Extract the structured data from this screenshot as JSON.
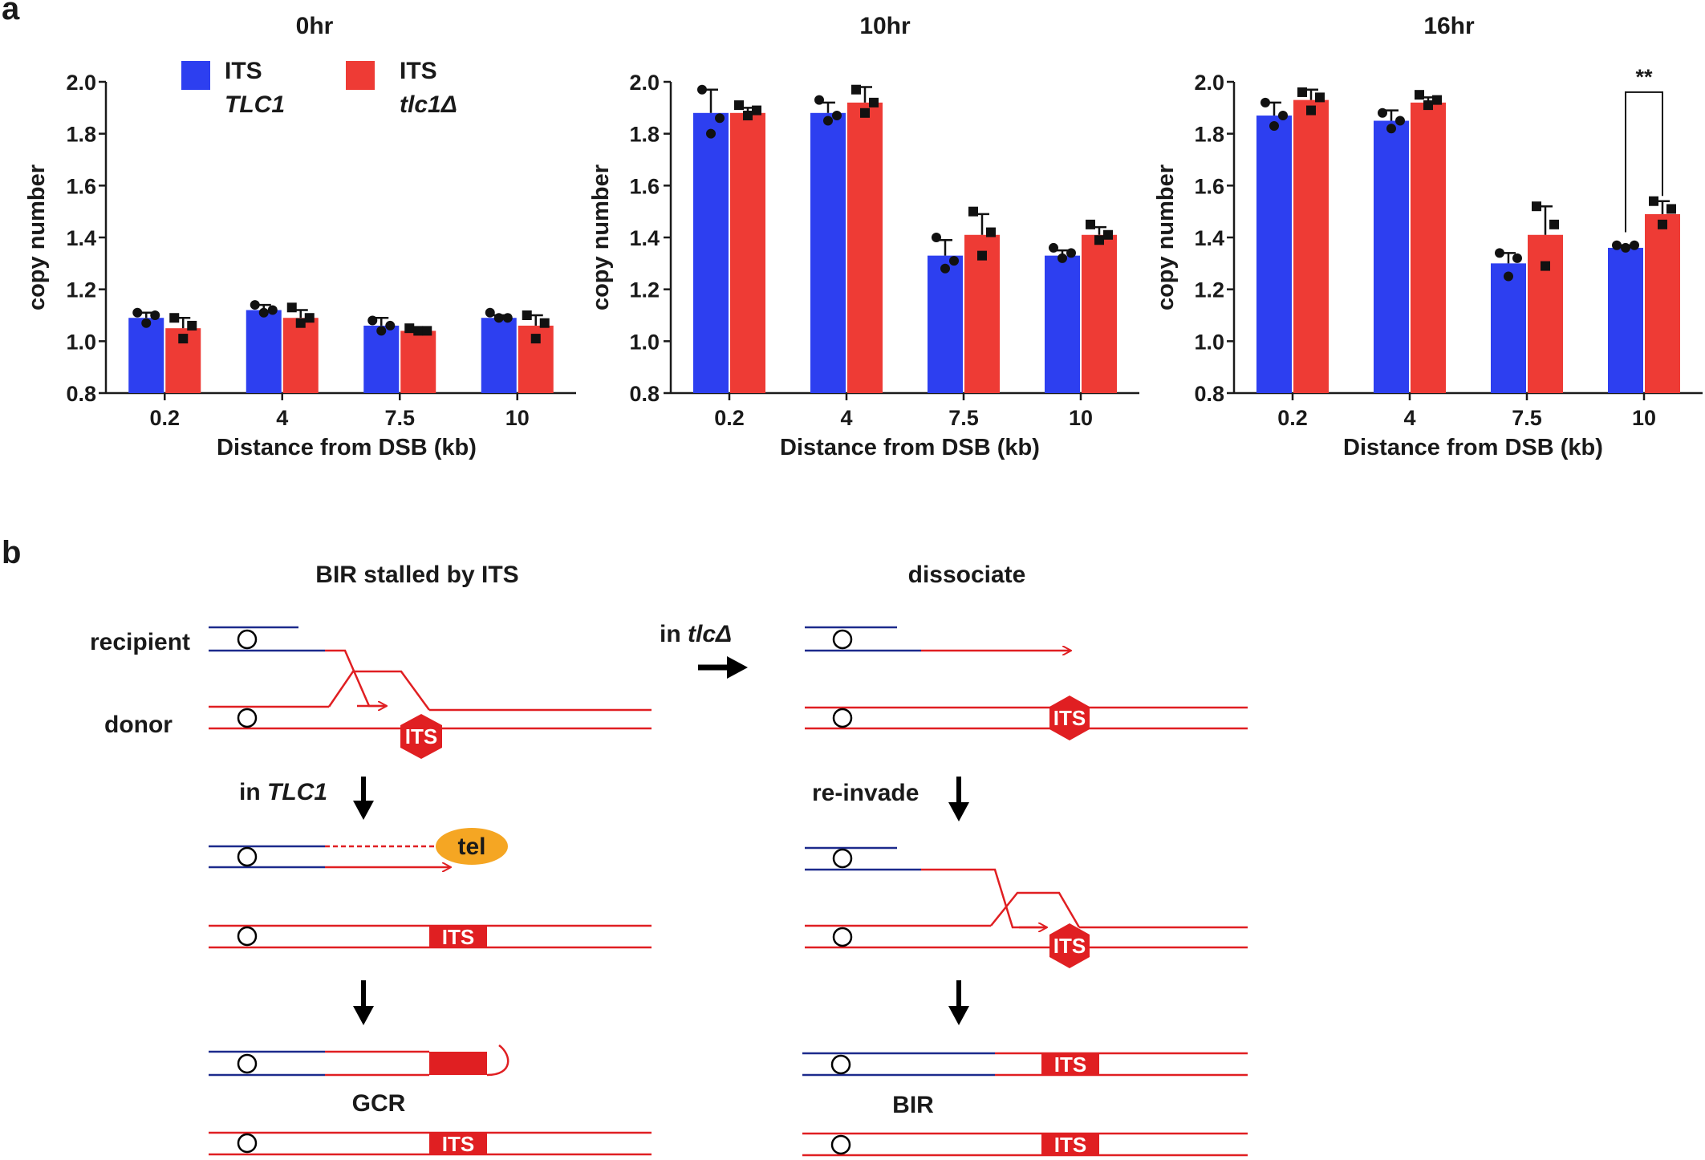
{
  "panel_a_label": "a",
  "panel_b_label": "b",
  "legend": {
    "wt_line1": "ITS",
    "wt_line2": "TLC1",
    "mut_line1": "ITS",
    "mut_line2": "tlc1Δ"
  },
  "colors": {
    "wt": "#2d3ff0",
    "mut": "#ee3b35",
    "recipient": "#1c2a8c",
    "donor": "#e01f22",
    "tel": "#f5a623"
  },
  "chart_data": [
    {
      "type": "bar",
      "title": "0hr",
      "xlabel": "Distance from DSB (kb)",
      "ylabel": "copy number",
      "ylim": [
        0.8,
        2.0
      ],
      "yticks": [
        "0.8",
        "1.0",
        "1.2",
        "1.4",
        "1.6",
        "1.8",
        "2.0"
      ],
      "categories": [
        "0.2",
        "4",
        "7.5",
        "10"
      ],
      "series": [
        {
          "name": "ITS TLC1",
          "values": [
            1.09,
            1.12,
            1.06,
            1.09
          ],
          "errors": [
            0.02,
            0.02,
            0.03,
            0.01
          ],
          "points": [
            [
              1.11,
              1.07,
              1.1
            ],
            [
              1.14,
              1.11,
              1.12
            ],
            [
              1.08,
              1.04,
              1.06
            ],
            [
              1.11,
              1.09,
              1.09
            ]
          ]
        },
        {
          "name": "ITS tlc1Δ",
          "values": [
            1.05,
            1.09,
            1.04,
            1.06
          ],
          "errors": [
            0.04,
            0.03,
            0.01,
            0.04
          ],
          "points": [
            [
              1.09,
              1.01,
              1.06
            ],
            [
              1.13,
              1.07,
              1.09
            ],
            [
              1.05,
              1.04,
              1.04
            ],
            [
              1.1,
              1.01,
              1.07
            ]
          ]
        }
      ],
      "annotation": ""
    },
    {
      "type": "bar",
      "title": "10hr",
      "xlabel": "Distance from DSB (kb)",
      "ylabel": "copy number",
      "ylim": [
        0.8,
        2.0
      ],
      "yticks": [
        "0.8",
        "1.0",
        "1.2",
        "1.4",
        "1.6",
        "1.8",
        "2.0"
      ],
      "categories": [
        "0.2",
        "4",
        "7.5",
        "10"
      ],
      "series": [
        {
          "name": "ITS TLC1",
          "values": [
            1.88,
            1.88,
            1.33,
            1.33
          ],
          "errors": [
            0.09,
            0.04,
            0.06,
            0.02
          ],
          "points": [
            [
              1.97,
              1.8,
              1.86
            ],
            [
              1.93,
              1.85,
              1.87
            ],
            [
              1.4,
              1.28,
              1.31
            ],
            [
              1.36,
              1.32,
              1.34
            ]
          ]
        },
        {
          "name": "ITS tlc1Δ",
          "values": [
            1.88,
            1.92,
            1.41,
            1.41
          ],
          "errors": [
            0.02,
            0.06,
            0.08,
            0.03
          ],
          "points": [
            [
              1.91,
              1.87,
              1.89
            ],
            [
              1.97,
              1.88,
              1.92
            ],
            [
              1.5,
              1.33,
              1.42
            ],
            [
              1.45,
              1.39,
              1.41
            ]
          ]
        }
      ],
      "annotation": ""
    },
    {
      "type": "bar",
      "title": "16hr",
      "xlabel": "Distance from DSB (kb)",
      "ylabel": "copy number",
      "ylim": [
        0.8,
        2.0
      ],
      "yticks": [
        "0.8",
        "1.0",
        "1.2",
        "1.4",
        "1.6",
        "1.8",
        "2.0"
      ],
      "categories": [
        "0.2",
        "4",
        "7.5",
        "10"
      ],
      "series": [
        {
          "name": "ITS TLC1",
          "values": [
            1.87,
            1.85,
            1.3,
            1.36
          ],
          "errors": [
            0.05,
            0.04,
            0.04,
            0.01
          ],
          "points": [
            [
              1.92,
              1.83,
              1.87
            ],
            [
              1.88,
              1.82,
              1.85
            ],
            [
              1.34,
              1.25,
              1.32
            ],
            [
              1.37,
              1.36,
              1.37
            ]
          ]
        },
        {
          "name": "ITS tlc1Δ",
          "values": [
            1.93,
            1.92,
            1.41,
            1.49
          ],
          "errors": [
            0.04,
            0.02,
            0.11,
            0.05
          ],
          "points": [
            [
              1.96,
              1.89,
              1.94
            ],
            [
              1.95,
              1.91,
              1.93
            ],
            [
              1.52,
              1.29,
              1.45
            ],
            [
              1.54,
              1.45,
              1.51
            ]
          ]
        }
      ],
      "annotation": "**"
    }
  ],
  "diagram": {
    "title_left": "BIR stalled by ITS",
    "title_right": "dissociate",
    "recipient_label": "recipient",
    "donor_label": "donor",
    "its_label": "ITS",
    "in_tlc1_prefix": "in ",
    "in_tlc1_gene": "TLC1",
    "in_tlc1d_prefix": "in ",
    "in_tlc1d_gene": "tlcΔ",
    "tel_label": "tel",
    "reinvade_label": "re-invade",
    "gcr_label": "GCR",
    "bir_label": "BIR"
  }
}
